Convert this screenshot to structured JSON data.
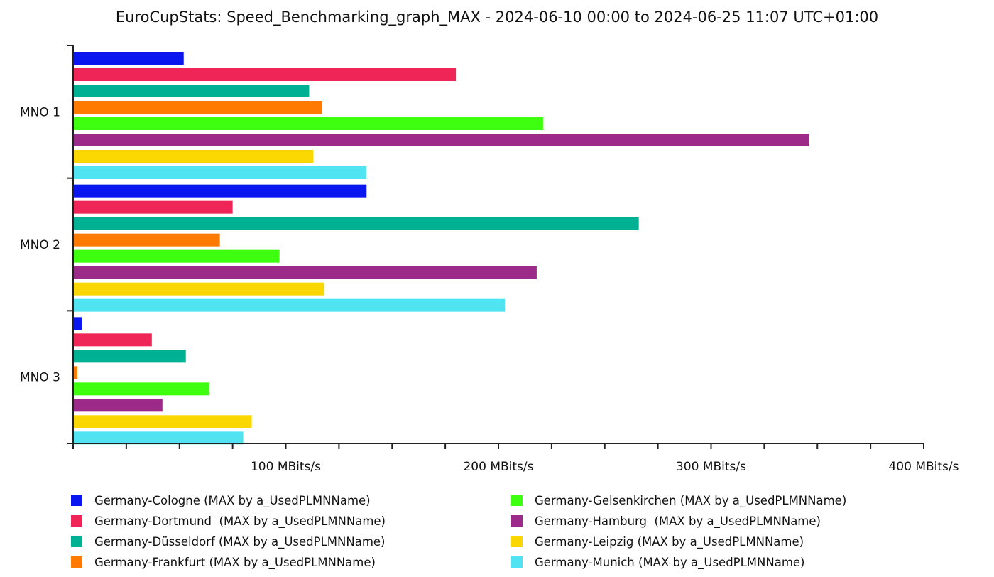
{
  "chart_data": {
    "type": "bar",
    "orientation": "horizontal",
    "title": "EuroCupStats: Speed_Benchmarking_graph_MAX - 2024-06-10 00:00 to 2024-06-25 11:07 UTC+01:00",
    "xlabel": "",
    "ylabel": "",
    "x_unit": "MBits/s",
    "xlim": [
      0,
      400
    ],
    "x_tick_labels": [
      "100 MBits/s",
      "200 MBits/s",
      "300 MBits/s",
      "400 MBits/s"
    ],
    "grid": false,
    "legend_position": "bottom",
    "categories": [
      "MNO 1",
      "MNO 2",
      "MNO 3"
    ],
    "series": [
      {
        "name": "Germany-Cologne (MAX by a_UsedPLMNName)",
        "color": "#0a16f0",
        "values": [
          52,
          138,
          4
        ]
      },
      {
        "name": "Germany-Dortmund  (MAX by a_UsedPLMNName)",
        "color": "#ee2556",
        "values": [
          180,
          75,
          37
        ]
      },
      {
        "name": "Germany-Düsseldorf (MAX by a_UsedPLMNName)",
        "color": "#00b092",
        "values": [
          111,
          266,
          53
        ]
      },
      {
        "name": "Germany-Frankfurt (MAX by a_UsedPLMNName)",
        "color": "#ff7a00",
        "values": [
          117,
          69,
          2
        ]
      },
      {
        "name": "Germany-Gelsenkirchen (MAX by a_UsedPLMNName)",
        "color": "#3dff0f",
        "values": [
          221,
          97,
          64
        ]
      },
      {
        "name": "Germany-Hamburg  (MAX by a_UsedPLMNName)",
        "color": "#9b2a88",
        "values": [
          346,
          218,
          42
        ]
      },
      {
        "name": "Germany-Leipzig (MAX by a_UsedPLMNName)",
        "color": "#fad700",
        "values": [
          113,
          118,
          84
        ]
      },
      {
        "name": "Germany-Munich (MAX by a_UsedPLMNName)",
        "color": "#50e3f1",
        "values": [
          138,
          203,
          80
        ]
      }
    ]
  }
}
